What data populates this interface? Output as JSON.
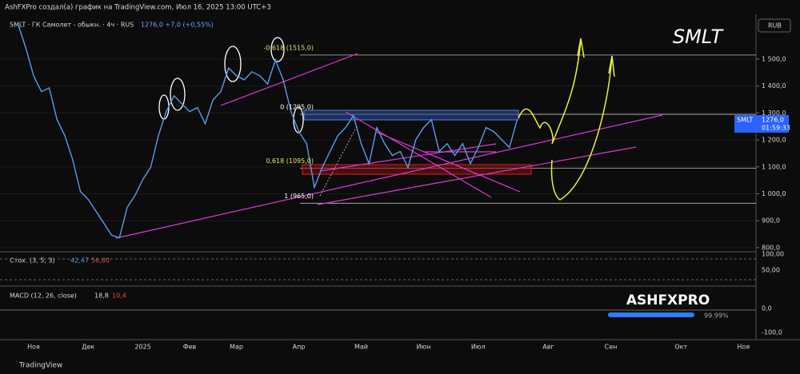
{
  "header": "AshFXPro создал(а) график на TradingView.com, Июл 16, 2025 13:00 UTC+3",
  "legend_line": "SMLT · ГК Самолет - обыкн. · 4ч · RUS",
  "quote": "1276,0 +7,0 (+0,55%)",
  "ticker_big": "SMLT",
  "currency": "RUB",
  "price_tag": {
    "name": "SMLT",
    "price": "1276,0",
    "timer": "01:59:33"
  },
  "stoch": {
    "title": "Стох. (3, 5, 3)",
    "k": "42,47",
    "d": "56,80",
    "scale": [
      "100,00",
      "50,00"
    ]
  },
  "macd": {
    "title": "MACD (12, 26, close)",
    "macd": "18,8",
    "signal": "10,4",
    "scale": [
      "0,0",
      "-100,0"
    ]
  },
  "logo": "ASHFXPRO",
  "logo_pct": "99.99%",
  "footer": "TradingView",
  "chart_data": {
    "type": "line",
    "categories": [
      null,
      null,
      null,
      null,
      "Ноя",
      null,
      null,
      null,
      null,
      null,
      null,
      "Дек",
      null,
      null,
      null,
      null,
      null,
      null,
      "2025",
      null,
      null,
      null,
      null,
      null,
      "Фев",
      null,
      null,
      null,
      null,
      null,
      "Мар",
      null,
      null,
      null,
      null,
      null,
      null,
      null,
      "Апр",
      null,
      null,
      null,
      null,
      null,
      null,
      null,
      "Май",
      null,
      null,
      null,
      null,
      null,
      null,
      null,
      "Июн",
      null,
      null,
      null,
      null,
      null,
      null,
      "Июл",
      null,
      null,
      null,
      null,
      null,
      null,
      null,
      null,
      "Авг",
      null,
      null,
      null,
      null,
      null,
      null,
      null,
      "Сен",
      null,
      null,
      null,
      null,
      null,
      null,
      null,
      null,
      "Окт",
      null,
      null,
      null,
      null,
      null,
      null,
      null,
      "Ноя",
      null
    ],
    "series": [
      {
        "name": "SMLT",
        "color": "#5b9be8",
        "values": [
          null,
          null,
          1630,
          1541,
          1438,
          1379,
          1393,
          1275,
          1216,
          1127,
          1009,
          979,
          935,
          891,
          846,
          837,
          950,
          994,
          1053,
          1098,
          1216,
          1305,
          1364,
          1334,
          1305,
          1320,
          1260,
          1349,
          1379,
          1467,
          1438,
          1423,
          1453,
          1438,
          1408,
          1497,
          1423,
          1305,
          1231,
          1186,
          1024,
          1098,
          1157,
          1216,
          1246,
          1290,
          1186,
          1112,
          1246,
          1186,
          1142,
          1157,
          1098,
          1201,
          1246,
          1275,
          1157,
          1186,
          1142,
          1186,
          1112,
          1172,
          1246,
          1231,
          1201,
          1172,
          1276,
          null,
          null,
          null,
          null,
          null,
          null,
          null,
          null,
          null,
          null,
          null,
          null,
          null,
          null,
          null,
          null,
          null,
          null,
          null,
          null,
          null,
          null,
          null,
          null,
          null,
          null,
          null,
          null,
          null,
          null
        ]
      }
    ],
    "ylim": [
      785,
      1660
    ],
    "yticks": [
      {
        "value": 1500,
        "label": "1 500,0"
      },
      {
        "value": 1400,
        "label": "1 400,0"
      },
      {
        "value": 1300,
        "label": "1 300,0"
      },
      {
        "value": 1200,
        "label": "1 200,0"
      },
      {
        "value": 1100,
        "label": "1 100,0"
      },
      {
        "value": 1000,
        "label": "1 000,0"
      },
      {
        "value": 900,
        "label": "900,0"
      },
      {
        "value": 800,
        "label": "800,0"
      }
    ],
    "annotations": [
      {
        "label": "-0,618 (1515,0)",
        "value": 1515
      },
      {
        "label": "0 (1295,0)",
        "value": 1295
      },
      {
        "label": "0,618 (1095,0)",
        "value": 1095
      },
      {
        "label": "1 (965,0)",
        "value": 965
      }
    ]
  }
}
